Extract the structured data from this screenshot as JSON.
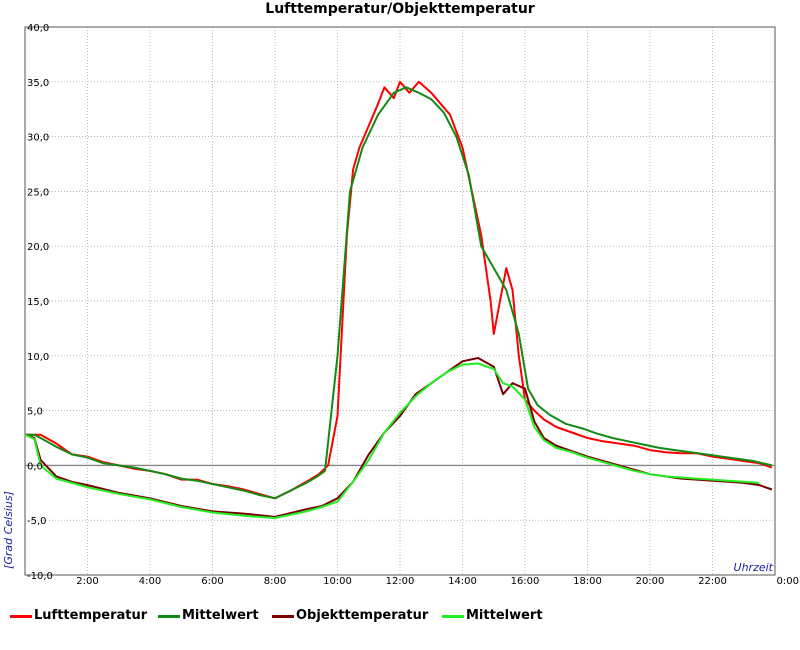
{
  "chart_data": {
    "type": "line",
    "title": "Lufttemperatur/Objekttemperatur",
    "xlabel": "Uhrzeit",
    "ylabel": "[Grad Celsius]",
    "xlim": [
      0,
      24
    ],
    "ylim": [
      -10,
      40
    ],
    "y_tick_labels": [
      "-10,0",
      "-5,0",
      "0,0",
      "5,0",
      "10,0",
      "15,0",
      "20,0",
      "25,0",
      "30,0",
      "35,0",
      "40,0"
    ],
    "x_tick_labels": [
      "2:00",
      "4:00",
      "6:00",
      "8:00",
      "10:00",
      "12:00",
      "14:00",
      "16:00",
      "18:00",
      "20:00",
      "22:00",
      "0:00"
    ],
    "grid": true,
    "legend_position": "bottom",
    "series": [
      {
        "name": "Lufttemperatur",
        "color": "#ff0000",
        "x": [
          0,
          0.5,
          1,
          1.5,
          2,
          2.5,
          3,
          3.5,
          4,
          4.5,
          5,
          5.5,
          6,
          6.5,
          7,
          7.5,
          8,
          8.5,
          9,
          9.4,
          9.7,
          10,
          10.1,
          10.3,
          10.5,
          10.7,
          11,
          11.3,
          11.5,
          11.8,
          12,
          12.3,
          12.6,
          13,
          13.3,
          13.6,
          14,
          14.3,
          14.6,
          14.9,
          15.0,
          15.2,
          15.4,
          15.6,
          15.8,
          16,
          16.3,
          16.6,
          17,
          17.5,
          18,
          18.5,
          19,
          19.5,
          20,
          20.5,
          21,
          21.5,
          22,
          22.5,
          23,
          23.5,
          23.9
        ],
        "y": [
          2.8,
          2.8,
          2,
          1,
          0.8,
          0.3,
          0,
          -0.3,
          -0.5,
          -0.8,
          -1.3,
          -1.3,
          -1.7,
          -1.9,
          -2.2,
          -2.6,
          -3,
          -2.3,
          -1.5,
          -0.8,
          0,
          4.5,
          10,
          21,
          27,
          29,
          31,
          33,
          34.5,
          33.5,
          35,
          34,
          35,
          34,
          33,
          32,
          29,
          25,
          21,
          15,
          12,
          15,
          18,
          16,
          10,
          6,
          5,
          4.2,
          3.5,
          3,
          2.5,
          2.2,
          2,
          1.8,
          1.4,
          1.2,
          1.1,
          1.1,
          0.8,
          0.6,
          0.4,
          0.2,
          -0.2
        ]
      },
      {
        "name": "Mittelwert",
        "color": "#138a13",
        "x": [
          0,
          0.3,
          0.5,
          1,
          1.5,
          2,
          2.5,
          3,
          3.5,
          4,
          4.5,
          5,
          5.5,
          6,
          6.5,
          7,
          7.5,
          8,
          8.5,
          9,
          9.3,
          9.6,
          10,
          10.4,
          10.8,
          11.3,
          11.8,
          12.2,
          12.6,
          13,
          13.4,
          13.8,
          14.2,
          14.6,
          15,
          15.4,
          15.8,
          16.1,
          16.4,
          16.8,
          17.3,
          17.8,
          18.3,
          18.8,
          19.3,
          19.8,
          20.3,
          20.8,
          21.3,
          21.8,
          22.3,
          22.8,
          23.3,
          23.9
        ],
        "y": [
          2.8,
          2.8,
          2.5,
          1.7,
          1,
          0.7,
          0.2,
          0,
          -0.2,
          -0.5,
          -0.8,
          -1.2,
          -1.4,
          -1.7,
          -2,
          -2.3,
          -2.7,
          -3,
          -2.3,
          -1.6,
          -1.1,
          -0.5,
          10,
          25,
          29,
          32,
          34,
          34.5,
          34,
          33.4,
          32.2,
          30,
          26.5,
          20,
          18,
          16,
          12,
          7,
          5.5,
          4.6,
          3.8,
          3.4,
          2.9,
          2.5,
          2.2,
          1.9,
          1.6,
          1.4,
          1.2,
          1.0,
          0.8,
          0.6,
          0.4,
          0.0
        ]
      },
      {
        "name": "Objekttemperatur",
        "color": "#7a0000",
        "x": [
          0,
          0.3,
          0.5,
          1,
          1.5,
          2,
          3,
          4,
          5,
          6,
          7,
          8,
          9,
          9.5,
          10,
          10.5,
          11,
          11.5,
          12,
          12.5,
          13,
          13.5,
          14,
          14.5,
          15,
          15.3,
          15.6,
          16,
          16.3,
          16.6,
          17,
          17.5,
          18,
          18.5,
          19,
          19.5,
          20,
          20.5,
          21,
          21.5,
          22,
          22.5,
          23,
          23.5,
          23.9
        ],
        "y": [
          2.8,
          2.5,
          0.5,
          -1,
          -1.5,
          -1.8,
          -2.5,
          -3,
          -3.7,
          -4.2,
          -4.4,
          -4.7,
          -4,
          -3.7,
          -3,
          -1.5,
          1,
          3,
          4.5,
          6.5,
          7.5,
          8.5,
          9.5,
          9.8,
          9,
          6.5,
          7.5,
          7,
          4,
          2.5,
          1.8,
          1.3,
          0.8,
          0.4,
          0,
          -0.4,
          -0.8,
          -1,
          -1.2,
          -1.3,
          -1.4,
          -1.5,
          -1.6,
          -1.8,
          -2.2
        ]
      },
      {
        "name": "Mittelwert",
        "color": "#22ee22",
        "x": [
          0,
          0.3,
          0.5,
          1,
          1.5,
          2,
          3,
          4,
          5,
          6,
          7,
          8,
          9,
          9.5,
          10,
          10.5,
          11,
          11.5,
          12,
          12.5,
          13,
          13.5,
          14,
          14.5,
          15,
          15.3,
          15.6,
          16,
          16.3,
          16.6,
          17,
          17.5,
          18,
          18.5,
          19,
          19.5,
          20,
          20.5,
          21,
          21.5,
          22,
          22.5,
          23,
          23.5
        ],
        "y": [
          2.8,
          2.4,
          0,
          -1.2,
          -1.6,
          -2,
          -2.6,
          -3.1,
          -3.8,
          -4.3,
          -4.6,
          -4.8,
          -4.2,
          -3.8,
          -3.3,
          -1.5,
          0.5,
          3,
          4.8,
          6.3,
          7.5,
          8.5,
          9.2,
          9.3,
          8.8,
          7.5,
          7.2,
          6,
          3.5,
          2.3,
          1.6,
          1.2,
          0.7,
          0.3,
          -0.1,
          -0.5,
          -0.8,
          -1,
          -1.1,
          -1.2,
          -1.3,
          -1.4,
          -1.5,
          -1.6
        ]
      }
    ]
  }
}
